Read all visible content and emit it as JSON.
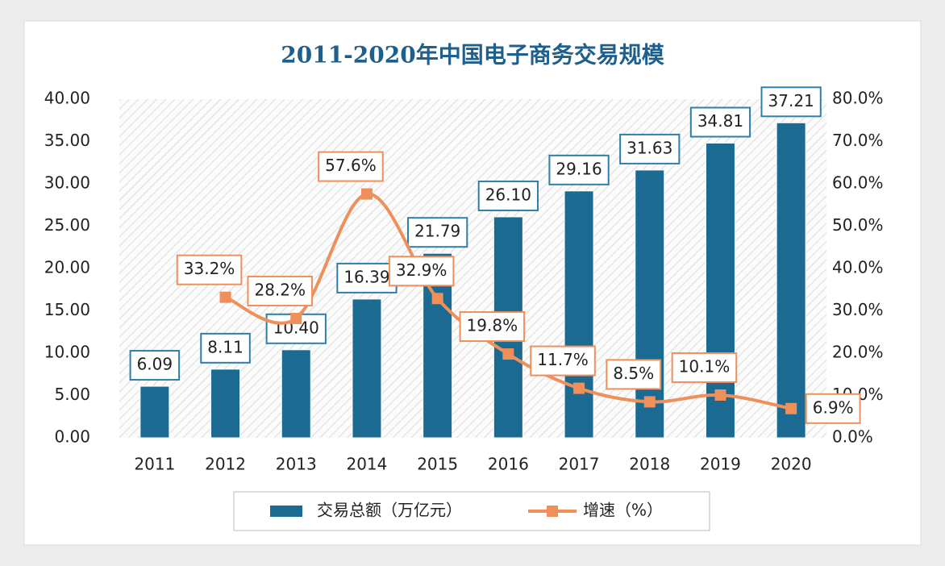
{
  "chart_data": {
    "type": "bar",
    "title": "2011-2020年中国电子商务交易规模",
    "categories": [
      "2011",
      "2012",
      "2013",
      "2014",
      "2015",
      "2016",
      "2017",
      "2018",
      "2019",
      "2020"
    ],
    "series": [
      {
        "name": "交易总额（万亿元）",
        "type": "bar",
        "color": "#1b6a92",
        "values": [
          6.09,
          8.11,
          10.4,
          16.39,
          21.79,
          26.1,
          29.16,
          31.63,
          34.81,
          37.21
        ],
        "value_labels": [
          "6.09",
          "8.11",
          "10.40",
          "16.39",
          "21.79",
          "26.10",
          "29.16",
          "31.63",
          "34.81",
          "37.21"
        ]
      },
      {
        "name": "增速（%）",
        "type": "line",
        "axis": "y2",
        "color": "#ef8f5a",
        "values": [
          null,
          33.2,
          28.2,
          57.6,
          32.9,
          19.8,
          11.7,
          8.5,
          10.1,
          6.9
        ],
        "value_labels": [
          null,
          "33.2%",
          "28.2%",
          "57.6%",
          "32.9%",
          "19.8%",
          "11.7%",
          "8.5%",
          "10.1%",
          "6.9%"
        ]
      }
    ],
    "ylim": [
      0,
      40
    ],
    "yticks": [
      {
        "value": 0,
        "label": "0.00"
      },
      {
        "value": 5,
        "label": "5.00"
      },
      {
        "value": 10,
        "label": "10.00"
      },
      {
        "value": 15,
        "label": "15.00"
      },
      {
        "value": 20,
        "label": "20.00"
      },
      {
        "value": 25,
        "label": "25.00"
      },
      {
        "value": 30,
        "label": "30.00"
      },
      {
        "value": 35,
        "label": "35.00"
      },
      {
        "value": 40,
        "label": "40.00"
      }
    ],
    "y2lim": [
      0,
      80
    ],
    "y2ticks": [
      {
        "value": 0,
        "label": "0.0%"
      },
      {
        "value": 10,
        "label": "10.0%"
      },
      {
        "value": 20,
        "label": "20.0%"
      },
      {
        "value": 30,
        "label": "30.0%"
      },
      {
        "value": 40,
        "label": "40.0%"
      },
      {
        "value": 50,
        "label": "50.0%"
      },
      {
        "value": 60,
        "label": "60.0%"
      },
      {
        "value": 70,
        "label": "70.0%"
      },
      {
        "value": 80,
        "label": "80.0%"
      }
    ],
    "legend": "bottom"
  }
}
